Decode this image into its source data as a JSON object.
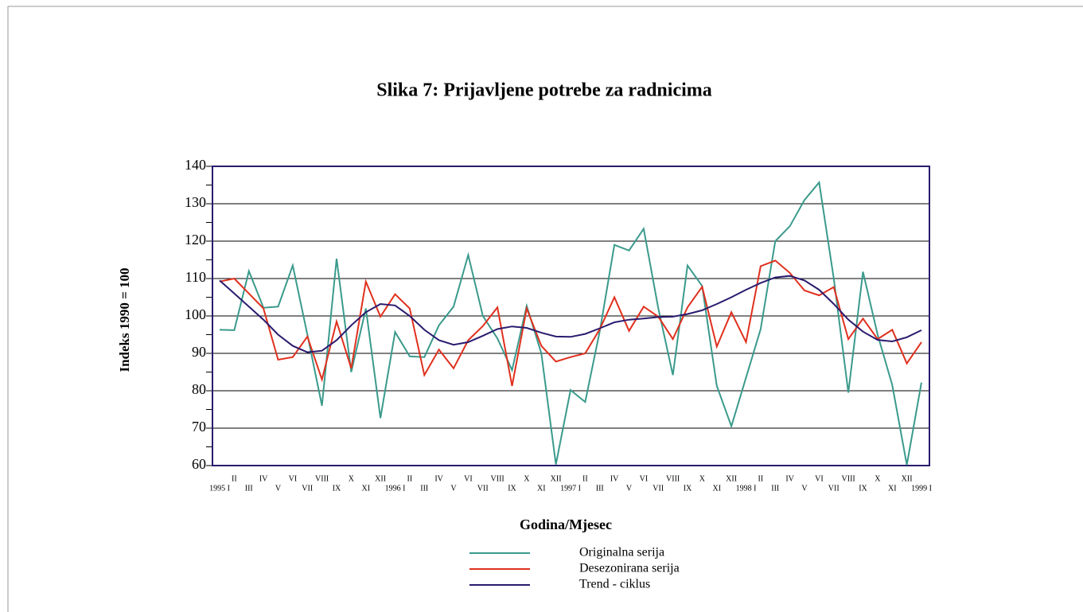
{
  "chart_data": {
    "type": "line",
    "title": "Slika 7: Prijavljene potrebe za radnicima",
    "x_label": "Godina/Mjesec",
    "y_label": "Indeks 1990 = 100",
    "categories": [
      "1995 I",
      "II",
      "III",
      "IV",
      "V",
      "VI",
      "VII",
      "VIII",
      "IX",
      "X",
      "XI",
      "XII",
      "1996 I",
      "II",
      "III",
      "IV",
      "V",
      "VI",
      "VII",
      "VIII",
      "IX",
      "X",
      "XI",
      "XII",
      "1997 I",
      "II",
      "III",
      "IV",
      "V",
      "VI",
      "VII",
      "VIII",
      "IX",
      "X",
      "XI",
      "XII",
      "1998 I",
      "II",
      "III",
      "IV",
      "V",
      "VI",
      "VII",
      "VIII",
      "IX",
      "X",
      "XI",
      "XII",
      "1999 I"
    ],
    "series": [
      {
        "name": "Originalna serija",
        "color": "#3a9a8c",
        "values": [
          96.3,
          96.2,
          112,
          102.2,
          102.5,
          113.5,
          95,
          76,
          115.3,
          85,
          102,
          72.7,
          95.7,
          89.2,
          89,
          97.5,
          102.5,
          116.3,
          100,
          94,
          85.5,
          102.7,
          90,
          60.3,
          80.2,
          77,
          96,
          119,
          117.5,
          123.3,
          102,
          84.2,
          113.5,
          108,
          81.3,
          70.5,
          83.5,
          96.5,
          120,
          124,
          131,
          135.7,
          110,
          79.5,
          111.8,
          95,
          81.5,
          60.2,
          82.2
        ]
      },
      {
        "name": "Desezonirana serija",
        "color": "#e0301e",
        "values": [
          109.2,
          110,
          106,
          102,
          88.3,
          89,
          94.5,
          83,
          98.5,
          86,
          109.2,
          99.8,
          105.8,
          102,
          84.2,
          91,
          86,
          93.5,
          97.3,
          102.3,
          81.3,
          102,
          92,
          87.8,
          89,
          90,
          96.5,
          105,
          96,
          102.5,
          99.8,
          93.8,
          102.3,
          107.8,
          91.8,
          101,
          93,
          113.3,
          114.8,
          111.5,
          106.8,
          105.5,
          107.7,
          93.8,
          99.3,
          93.8,
          96.3,
          87.3,
          93
        ]
      },
      {
        "name": "Trend - ciklus",
        "color": "#2a1b6e",
        "values": [
          109.5,
          106,
          102.5,
          99,
          95,
          92,
          90.3,
          90.7,
          93.5,
          97.5,
          101,
          103.2,
          102.8,
          100,
          96.3,
          93.5,
          92.3,
          93,
          94.7,
          96.5,
          97.2,
          96.8,
          95.5,
          94.5,
          94.4,
          95.2,
          96.7,
          98.3,
          99,
          99.3,
          99.7,
          99.8,
          100.5,
          101.5,
          103.2,
          105,
          107,
          108.8,
          110.3,
          110.7,
          109.5,
          107,
          103.2,
          99,
          95.8,
          93.6,
          93.2,
          94.3,
          96.2
        ]
      }
    ],
    "ylim": [
      60,
      140
    ],
    "yticks": [
      60,
      70,
      80,
      90,
      100,
      110,
      120,
      130,
      140
    ],
    "grid": true
  }
}
